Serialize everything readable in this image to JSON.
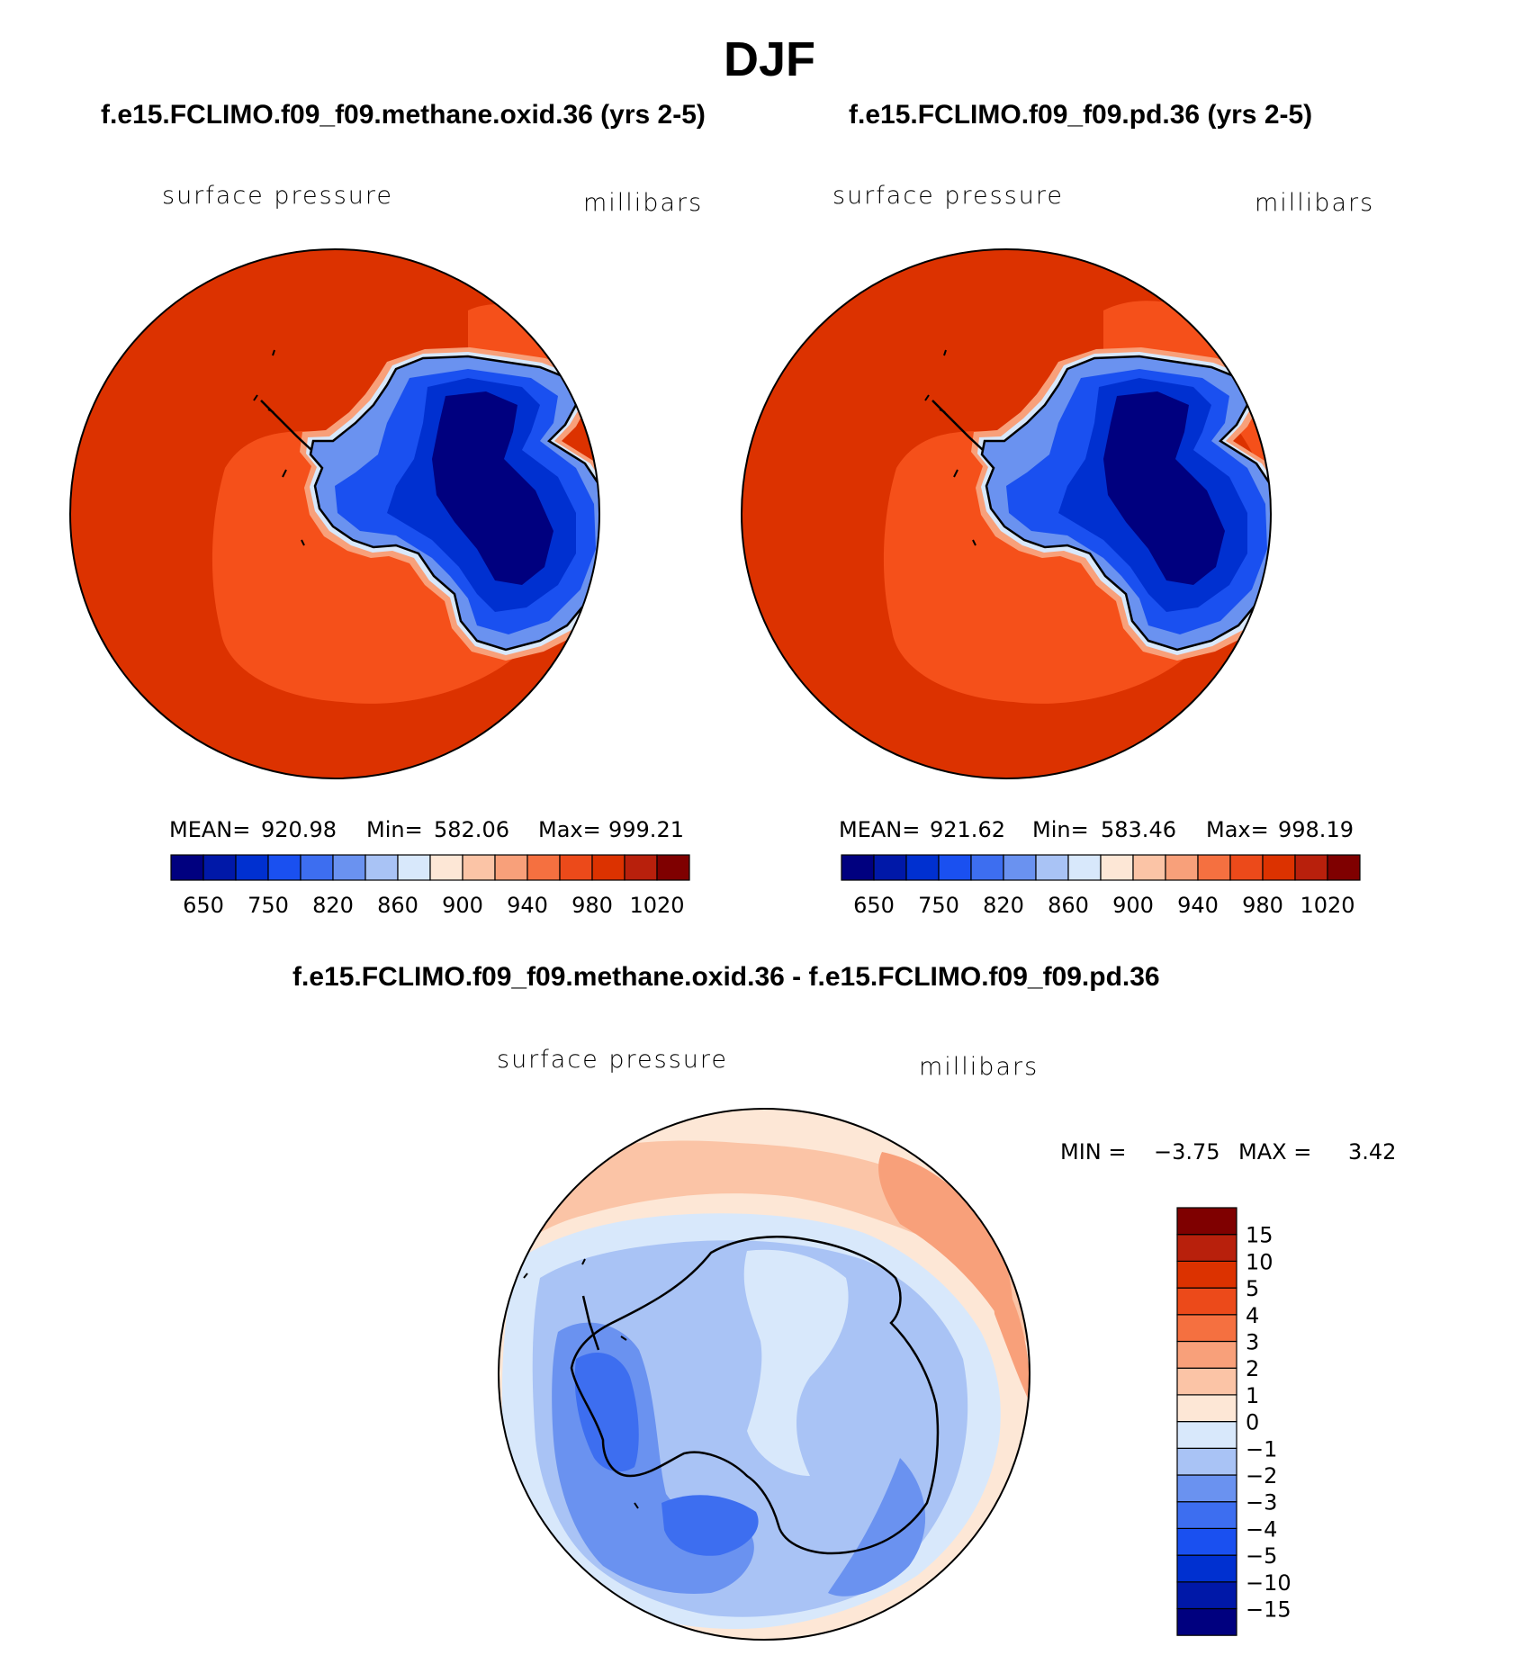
{
  "page": {
    "season_title": "DJF"
  },
  "panels": {
    "case1": {
      "title": "f.e15.FCLIMO.f09_f09.methane.oxid.36 (yrs 2-5)",
      "variable": "surface pressure",
      "units": "millibars",
      "mean_label": "MEAN=",
      "mean": "920.98",
      "min_label": "Min=",
      "min": "582.06",
      "max_label": "Max=",
      "max": "999.21"
    },
    "case2": {
      "title": "f.e15.FCLIMO.f09_f09.pd.36 (yrs 2-5)",
      "variable": "surface pressure",
      "units": "millibars",
      "mean_label": "MEAN=",
      "mean": "921.62",
      "min_label": "Min=",
      "min": "583.46",
      "max_label": "Max=",
      "max": "998.19"
    },
    "difference": {
      "title": "f.e15.FCLIMO.f09_f09.methane.oxid.36 - f.e15.FCLIMO.f09_f09.pd.36",
      "variable": "surface pressure",
      "units": "millibars",
      "min_label": "MIN =",
      "min": "−3.75",
      "max_label": "MAX =",
      "max": "3.42"
    }
  },
  "colorbar_main": {
    "colors": [
      "#00007f",
      "#0018a8",
      "#0030d0",
      "#1a50f0",
      "#3d6ef0",
      "#6a92f0",
      "#a9c3f5",
      "#d8e8fb",
      "#fde7d6",
      "#fbc4a6",
      "#f8a07a",
      "#f57040",
      "#ec4a1a",
      "#dc3200",
      "#b8200c",
      "#7f0000"
    ],
    "tick_labels": [
      "650",
      "750",
      "820",
      "860",
      "900",
      "940",
      "980",
      "1020"
    ]
  },
  "colorbar_diff": {
    "colors": [
      "#00007f",
      "#0018a8",
      "#0030d0",
      "#1a50f0",
      "#3d6ef0",
      "#6a92f0",
      "#a9c3f5",
      "#d8e8fb",
      "#fde7d6",
      "#fbc4a6",
      "#f8a07a",
      "#f57040",
      "#ec4a1a",
      "#dc3200",
      "#b8200c",
      "#7f0000"
    ],
    "tick_labels": [
      "−15",
      "−10",
      "−5",
      "−4",
      "−3",
      "−2",
      "−1",
      "0",
      "1",
      "2",
      "3",
      "4",
      "5",
      "10",
      "15"
    ]
  },
  "map_colors": {
    "ocean_high": "#dc3200",
    "ocean_mid": "#f5501a",
    "plateau_low": "#00007f",
    "plateau_mid": "#0030d0",
    "slope": "#3d6ef0",
    "coast_white": "#d8e8fb",
    "coastline": "#000000",
    "diff_pos1": "#fde7d6",
    "diff_pos2": "#fbc4a6",
    "diff_pos3": "#f8a07a",
    "diff_zero": "#d8e8fb",
    "diff_neg1": "#a9c3f5",
    "diff_neg2": "#6a92f0",
    "diff_neg3": "#3d6ef0"
  }
}
